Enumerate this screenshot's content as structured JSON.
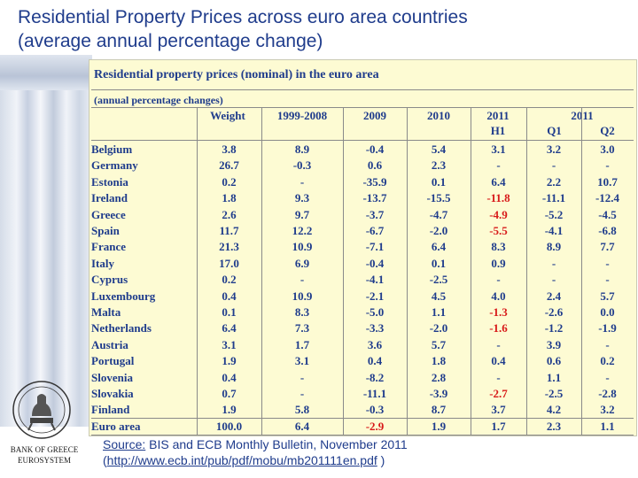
{
  "slide": {
    "title_line1": "Residential Property Prices across euro area countries",
    "title_line2": "(average annual percentage change)"
  },
  "table": {
    "title": "Residential property prices (nominal) in the euro area",
    "subtitle": "(annual percentage changes)",
    "headers": {
      "weight": "Weight",
      "p1999_2008": "1999-2008",
      "y2009": "2009",
      "y2010": "2010",
      "y2011_h1_top": "2011",
      "y2011_h1_bottom": "H1",
      "y2011_top": "2011",
      "q1": "Q1",
      "q2": "Q2"
    },
    "negative_color": "#d81a1a",
    "text_color": "#1f3c8c",
    "rows": [
      {
        "country": "Belgium",
        "weight": "3.8",
        "p1999": "8.9",
        "y2009": "-0.4",
        "y2010": "5.4",
        "h1": "3.1",
        "q1": "3.2",
        "q2": "3.0",
        "h1_neg": false
      },
      {
        "country": "Germany",
        "weight": "26.7",
        "p1999": "-0.3",
        "y2009": "0.6",
        "y2010": "2.3",
        "h1": "-",
        "q1": "-",
        "q2": "-",
        "h1_neg": false
      },
      {
        "country": "Estonia",
        "weight": "0.2",
        "p1999": "-",
        "y2009": "-35.9",
        "y2010": "0.1",
        "h1": "6.4",
        "q1": "2.2",
        "q2": "10.7",
        "h1_neg": false
      },
      {
        "country": "Ireland",
        "weight": "1.8",
        "p1999": "9.3",
        "y2009": "-13.7",
        "y2010": "-15.5",
        "h1": "-11.8",
        "q1": "-11.1",
        "q2": "-12.4",
        "h1_neg": true
      },
      {
        "country": "Greece",
        "weight": "2.6",
        "p1999": "9.7",
        "y2009": "-3.7",
        "y2010": "-4.7",
        "h1": "-4.9",
        "q1": "-5.2",
        "q2": "-4.5",
        "h1_neg": true
      },
      {
        "country": "Spain",
        "weight": "11.7",
        "p1999": "12.2",
        "y2009": "-6.7",
        "y2010": "-2.0",
        "h1": "-5.5",
        "q1": "-4.1",
        "q2": "-6.8",
        "h1_neg": true
      },
      {
        "country": "France",
        "weight": "21.3",
        "p1999": "10.9",
        "y2009": "-7.1",
        "y2010": "6.4",
        "h1": "8.3",
        "q1": "8.9",
        "q2": "7.7",
        "h1_neg": false
      },
      {
        "country": "Italy",
        "weight": "17.0",
        "p1999": "6.9",
        "y2009": "-0.4",
        "y2010": "0.1",
        "h1": "0.9",
        "q1": "-",
        "q2": "-",
        "h1_neg": false
      },
      {
        "country": "Cyprus",
        "weight": "0.2",
        "p1999": "-",
        "y2009": "-4.1",
        "y2010": "-2.5",
        "h1": "-",
        "q1": "-",
        "q2": "-",
        "h1_neg": false
      },
      {
        "country": "Luxembourg",
        "weight": "0.4",
        "p1999": "10.9",
        "y2009": "-2.1",
        "y2010": "4.5",
        "h1": "4.0",
        "q1": "2.4",
        "q2": "5.7",
        "h1_neg": false
      },
      {
        "country": "Malta",
        "weight": "0.1",
        "p1999": "8.3",
        "y2009": "-5.0",
        "y2010": "1.1",
        "h1": "-1.3",
        "q1": "-2.6",
        "q2": "0.0",
        "h1_neg": true
      },
      {
        "country": "Netherlands",
        "weight": "6.4",
        "p1999": "7.3",
        "y2009": "-3.3",
        "y2010": "-2.0",
        "h1": "-1.6",
        "q1": "-1.2",
        "q2": "-1.9",
        "h1_neg": true
      },
      {
        "country": "Austria",
        "weight": "3.1",
        "p1999": "1.7",
        "y2009": "3.6",
        "y2010": "5.7",
        "h1": "-",
        "q1": "3.9",
        "q2": "-",
        "h1_neg": false
      },
      {
        "country": "Portugal",
        "weight": "1.9",
        "p1999": "3.1",
        "y2009": "0.4",
        "y2010": "1.8",
        "h1": "0.4",
        "q1": "0.6",
        "q2": "0.2",
        "h1_neg": false
      },
      {
        "country": "Slovenia",
        "weight": "0.4",
        "p1999": "-",
        "y2009": "-8.2",
        "y2010": "2.8",
        "h1": "-",
        "q1": "1.1",
        "q2": "-",
        "h1_neg": false
      },
      {
        "country": "Slovakia",
        "weight": "0.7",
        "p1999": "-",
        "y2009": "-11.1",
        "y2010": "-3.9",
        "h1": "-2.7",
        "q1": "-2.5",
        "q2": "-2.8",
        "h1_neg": true
      },
      {
        "country": "Finland",
        "weight": "1.9",
        "p1999": "5.8",
        "y2009": "-0.3",
        "y2010": "8.7",
        "h1": "3.7",
        "q1": "4.2",
        "q2": "3.2",
        "h1_neg": false
      },
      {
        "country": "Euro area",
        "weight": "100.0",
        "p1999": "6.4",
        "y2009": "-2.9",
        "y2010": "1.9",
        "h1": "1.7",
        "q1": "2.3",
        "q2": "1.1",
        "h1_neg": false,
        "y2009_neg": true
      }
    ]
  },
  "logo": {
    "line1": "BANK OF GREECE",
    "line2": "EUROSYSTEM"
  },
  "source": {
    "label": "Source:",
    "text": " BIS and ECB Monthly Bulletin, November 2011",
    "link_open": "(",
    "link": "http://www.ecb.int/pub/pdf/mobu/mb201111en.pdf",
    "link_close": " )"
  }
}
